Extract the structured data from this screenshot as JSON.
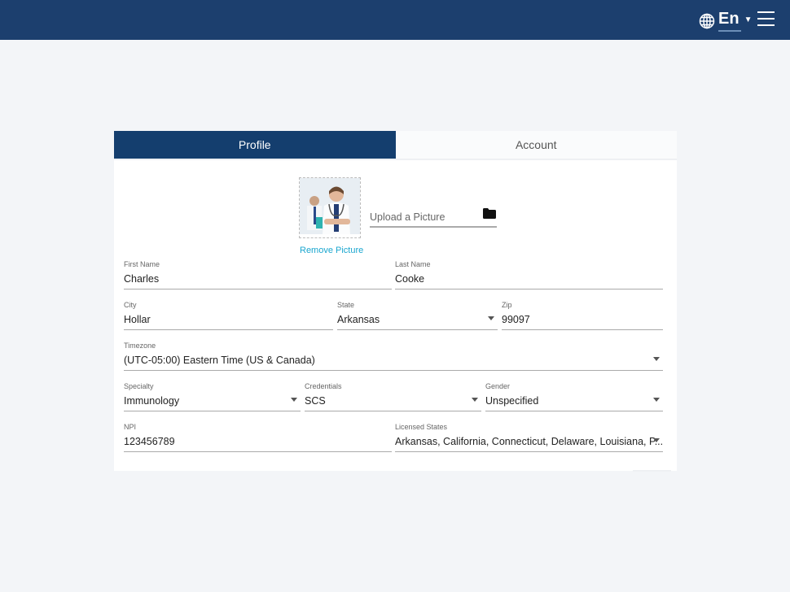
{
  "header": {
    "language": "En",
    "colors": {
      "bar": "#1c3f6e",
      "accent": "#1aa6cf"
    }
  },
  "tabs": [
    {
      "label": "Profile",
      "active": true
    },
    {
      "label": "Account",
      "active": false
    }
  ],
  "picture": {
    "remove_label": "Remove Picture",
    "upload_placeholder": "Upload a Picture"
  },
  "fields": {
    "first_name": {
      "label": "First Name",
      "value": "Charles"
    },
    "last_name": {
      "label": "Last Name",
      "value": "Cooke"
    },
    "city": {
      "label": "City",
      "value": "Hollar"
    },
    "state": {
      "label": "State",
      "value": "Arkansas"
    },
    "zip": {
      "label": "Zip",
      "value": "99097"
    },
    "timezone": {
      "label": "Timezone",
      "value": "(UTC-05:00) Eastern Time (US & Canada)"
    },
    "specialty": {
      "label": "Specialty",
      "value": "Immunology"
    },
    "credentials": {
      "label": "Credentials",
      "value": "SCS"
    },
    "gender": {
      "label": "Gender",
      "value": "Unspecified"
    },
    "npi": {
      "label": "NPI",
      "value": "123456789"
    },
    "licensed_states": {
      "label": "Licensed States",
      "value": "Arkansas, California, Connecticut, Delaware, Louisiana, P..."
    }
  }
}
